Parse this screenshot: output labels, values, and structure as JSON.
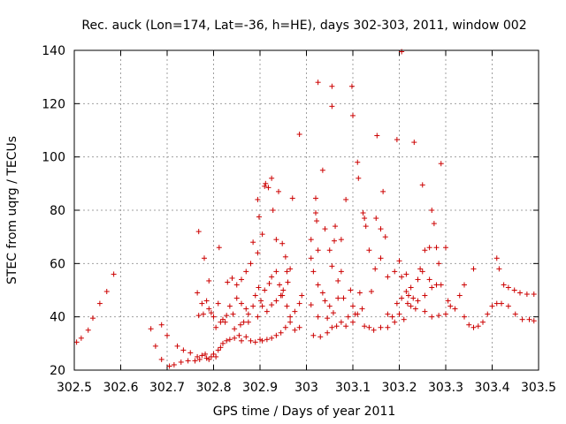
{
  "chart_data": {
    "type": "scatter",
    "title": "Rec. auck (Lon=174, Lat=-36, h=HE), days 302-303, 2011, window 002",
    "xlabel": "GPS time / Days of year 2011",
    "ylabel": "STEC from uqrg / TECUs",
    "xlim": [
      302.5,
      303.5
    ],
    "ylim": [
      20,
      140
    ],
    "xticks": [
      "302.5",
      "302.6",
      "302.7",
      "302.8",
      "302.9",
      "303",
      "303.1",
      "303.2",
      "303.3",
      "303.4",
      "303.5"
    ],
    "yticks": [
      "20",
      "40",
      "60",
      "80",
      "100",
      "120",
      "140"
    ],
    "grid": true,
    "marker": "+",
    "color": "#cc0000",
    "series": [
      {
        "points": [
          [
            302.505,
            30.5
          ],
          [
            302.515,
            32
          ],
          [
            302.53,
            35
          ],
          [
            302.54,
            39.5
          ],
          [
            302.555,
            45
          ],
          [
            302.57,
            49.5
          ],
          [
            302.585,
            56
          ],
          [
            302.665,
            35.5
          ],
          [
            302.675,
            29
          ],
          [
            302.688,
            37
          ],
          [
            302.688,
            24
          ],
          [
            302.7,
            33
          ],
          [
            302.705,
            21.5
          ],
          [
            302.715,
            22
          ],
          [
            302.722,
            29
          ],
          [
            302.73,
            23
          ],
          [
            302.735,
            27.5
          ],
          [
            302.745,
            23.5
          ],
          [
            302.75,
            26.5
          ],
          [
            302.76,
            23.5
          ],
          [
            302.765,
            25
          ],
          [
            302.77,
            24
          ],
          [
            302.775,
            25.5
          ],
          [
            302.782,
            26
          ],
          [
            302.785,
            24.5
          ],
          [
            302.79,
            24
          ],
          [
            302.795,
            25
          ],
          [
            302.8,
            26
          ],
          [
            302.805,
            25
          ],
          [
            302.81,
            27.5
          ],
          [
            302.815,
            28.5
          ],
          [
            302.82,
            30
          ],
          [
            302.828,
            31
          ],
          [
            302.835,
            31.5
          ],
          [
            302.845,
            32
          ],
          [
            302.855,
            33
          ],
          [
            302.86,
            31
          ],
          [
            302.87,
            32.5
          ],
          [
            302.88,
            31
          ],
          [
            302.89,
            30.5
          ],
          [
            302.9,
            31.5
          ],
          [
            302.905,
            31
          ],
          [
            302.915,
            31.5
          ],
          [
            302.925,
            32
          ],
          [
            302.935,
            33
          ],
          [
            302.945,
            34
          ],
          [
            302.955,
            36
          ],
          [
            302.965,
            38
          ],
          [
            302.975,
            35
          ],
          [
            302.985,
            36
          ],
          [
            302.768,
            72
          ],
          [
            302.78,
            62
          ],
          [
            302.79,
            53.5
          ],
          [
            302.812,
            66
          ],
          [
            302.83,
            53
          ],
          [
            302.84,
            54.5
          ],
          [
            302.85,
            52
          ],
          [
            302.86,
            54
          ],
          [
            302.87,
            57
          ],
          [
            302.88,
            60
          ],
          [
            302.885,
            68
          ],
          [
            302.895,
            64
          ],
          [
            302.895,
            84
          ],
          [
            302.898,
            77.5
          ],
          [
            302.905,
            71
          ],
          [
            302.91,
            89
          ],
          [
            302.912,
            90
          ],
          [
            302.918,
            88.5
          ],
          [
            302.925,
            92
          ],
          [
            302.928,
            80
          ],
          [
            302.935,
            69
          ],
          [
            302.94,
            87
          ],
          [
            302.948,
            67.5
          ],
          [
            302.955,
            62.5
          ],
          [
            302.958,
            57
          ],
          [
            302.965,
            58
          ],
          [
            302.97,
            84.5
          ],
          [
            302.985,
            108.5
          ],
          [
            302.765,
            49
          ],
          [
            302.775,
            45
          ],
          [
            302.778,
            41
          ],
          [
            302.785,
            46
          ],
          [
            302.79,
            43
          ],
          [
            302.795,
            41.5
          ],
          [
            302.8,
            40
          ],
          [
            302.81,
            45
          ],
          [
            302.815,
            38
          ],
          [
            302.82,
            39
          ],
          [
            302.828,
            40.5
          ],
          [
            302.835,
            44
          ],
          [
            302.842,
            41
          ],
          [
            302.85,
            47
          ],
          [
            302.86,
            45
          ],
          [
            302.865,
            38
          ],
          [
            302.87,
            43
          ],
          [
            302.875,
            41
          ],
          [
            302.885,
            44
          ],
          [
            302.89,
            48
          ],
          [
            302.897,
            51
          ],
          [
            302.902,
            46
          ],
          [
            302.91,
            50
          ],
          [
            302.92,
            52.5
          ],
          [
            302.925,
            55
          ],
          [
            302.935,
            57
          ],
          [
            302.942,
            52
          ],
          [
            302.948,
            48
          ],
          [
            302.958,
            44
          ],
          [
            302.965,
            40
          ],
          [
            302.975,
            42
          ],
          [
            302.985,
            45
          ],
          [
            302.99,
            48
          ],
          [
            302.768,
            40.5
          ],
          [
            302.805,
            36
          ],
          [
            302.825,
            38
          ],
          [
            302.845,
            35.5
          ],
          [
            302.858,
            37
          ],
          [
            302.875,
            38
          ],
          [
            302.895,
            40
          ],
          [
            302.905,
            44
          ],
          [
            302.915,
            42
          ],
          [
            302.925,
            44.5
          ],
          [
            302.935,
            46
          ],
          [
            302.945,
            48
          ],
          [
            302.95,
            50
          ],
          [
            302.96,
            53
          ],
          [
            303.01,
            62
          ],
          [
            303.01,
            69
          ],
          [
            303.02,
            84.5
          ],
          [
            303.02,
            79
          ],
          [
            303.022,
            76
          ],
          [
            303.025,
            65
          ],
          [
            303.035,
            95
          ],
          [
            303.04,
            73
          ],
          [
            303.05,
            65
          ],
          [
            303.055,
            59
          ],
          [
            303.06,
            68.5
          ],
          [
            303.062,
            74
          ],
          [
            303.068,
            53.5
          ],
          [
            303.075,
            57
          ],
          [
            303.015,
            57
          ],
          [
            303.025,
            52
          ],
          [
            303.035,
            49
          ],
          [
            303.04,
            46
          ],
          [
            303.05,
            44
          ],
          [
            303.01,
            44.5
          ],
          [
            303.025,
            40
          ],
          [
            303.045,
            39.5
          ],
          [
            303.058,
            41.5
          ],
          [
            303.068,
            47
          ],
          [
            303.08,
            47
          ],
          [
            303.09,
            40
          ],
          [
            303.105,
            41
          ],
          [
            303.12,
            43
          ],
          [
            303.085,
            36.5
          ],
          [
            303.1,
            38
          ],
          [
            303.015,
            33
          ],
          [
            303.03,
            32.5
          ],
          [
            303.045,
            34
          ],
          [
            303.055,
            36
          ],
          [
            303.065,
            36.5
          ],
          [
            303.075,
            38
          ],
          [
            303.025,
            128
          ],
          [
            303.055,
            126.5
          ],
          [
            303.055,
            119
          ],
          [
            303.098,
            126.5
          ],
          [
            303.1,
            115.5
          ],
          [
            303.11,
            98
          ],
          [
            303.112,
            92
          ],
          [
            303.085,
            84
          ],
          [
            303.075,
            69
          ],
          [
            303.095,
            50
          ],
          [
            303.1,
            44
          ],
          [
            303.11,
            41
          ],
          [
            303.115,
            49
          ],
          [
            303.122,
            79
          ],
          [
            303.125,
            77
          ],
          [
            303.128,
            74
          ],
          [
            303.135,
            65
          ],
          [
            303.14,
            49.5
          ],
          [
            303.148,
            58
          ],
          [
            303.152,
            108
          ],
          [
            303.15,
            77
          ],
          [
            303.16,
            73
          ],
          [
            303.16,
            62
          ],
          [
            303.165,
            87
          ],
          [
            303.17,
            70
          ],
          [
            303.175,
            55
          ],
          [
            303.175,
            36
          ],
          [
            303.185,
            40
          ],
          [
            303.195,
            106.5
          ],
          [
            303.195,
            45
          ],
          [
            303.205,
            55
          ],
          [
            303.205,
            139.5
          ],
          [
            303.215,
            49.5
          ],
          [
            303.22,
            48
          ],
          [
            303.225,
            51
          ],
          [
            303.23,
            47
          ],
          [
            303.232,
            105.5
          ],
          [
            303.24,
            54
          ],
          [
            303.245,
            58
          ],
          [
            303.25,
            89.5
          ],
          [
            303.255,
            65
          ],
          [
            303.265,
            66
          ],
          [
            303.27,
            80
          ],
          [
            303.275,
            75
          ],
          [
            303.28,
            66
          ],
          [
            303.285,
            60
          ],
          [
            303.29,
            97.5
          ],
          [
            303.3,
            66
          ],
          [
            303.305,
            46
          ],
          [
            303.125,
            36.5
          ],
          [
            303.135,
            36
          ],
          [
            303.145,
            35
          ],
          [
            303.16,
            36
          ],
          [
            303.175,
            41
          ],
          [
            303.19,
            38
          ],
          [
            303.2,
            41
          ],
          [
            303.21,
            39
          ],
          [
            303.225,
            44
          ],
          [
            303.24,
            46
          ],
          [
            303.255,
            42
          ],
          [
            303.27,
            40
          ],
          [
            303.285,
            40.5
          ],
          [
            303.3,
            41
          ],
          [
            303.31,
            44
          ],
          [
            303.32,
            43
          ],
          [
            303.33,
            48
          ],
          [
            303.34,
            40
          ],
          [
            303.35,
            37
          ],
          [
            303.36,
            36
          ],
          [
            303.37,
            36.5
          ],
          [
            303.38,
            38
          ],
          [
            303.39,
            41
          ],
          [
            303.4,
            44
          ],
          [
            303.41,
            45
          ],
          [
            303.42,
            45
          ],
          [
            303.435,
            44
          ],
          [
            303.45,
            41
          ],
          [
            303.465,
            39
          ],
          [
            303.48,
            39
          ],
          [
            303.49,
            38.5
          ],
          [
            303.41,
            62
          ],
          [
            303.415,
            58
          ],
          [
            303.425,
            52
          ],
          [
            303.435,
            51
          ],
          [
            303.448,
            50
          ],
          [
            303.46,
            49
          ],
          [
            303.475,
            48.5
          ],
          [
            303.49,
            48.5
          ],
          [
            303.34,
            52
          ],
          [
            303.36,
            58
          ],
          [
            303.19,
            57
          ],
          [
            303.2,
            61
          ],
          [
            303.215,
            56
          ],
          [
            303.25,
            57
          ],
          [
            303.265,
            54
          ],
          [
            303.28,
            52
          ],
          [
            303.205,
            47
          ],
          [
            303.218,
            45
          ],
          [
            303.235,
            43
          ],
          [
            303.255,
            48
          ],
          [
            303.27,
            51
          ],
          [
            303.29,
            52
          ]
        ]
      }
    ]
  }
}
